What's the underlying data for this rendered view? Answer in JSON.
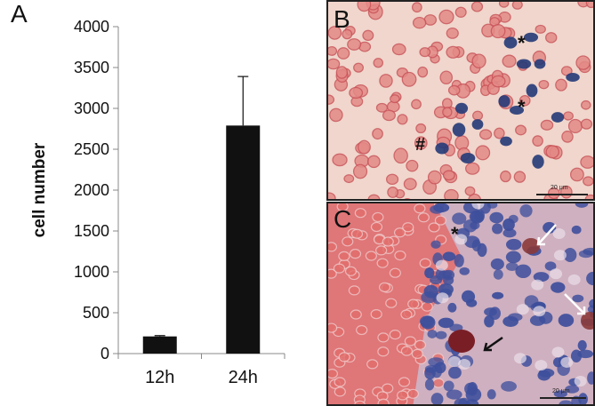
{
  "panel_a": {
    "letter": "A"
  },
  "panel_b": {
    "letter": "B",
    "marks": [
      "*",
      "*",
      "#"
    ],
    "scale_text": "20 μm"
  },
  "panel_c": {
    "letter": "C",
    "marks": [
      "*"
    ],
    "scale_text": "20 μm"
  },
  "chart_data": {
    "type": "bar",
    "categories": [
      "12h",
      "24h"
    ],
    "values": [
      210,
      2790
    ],
    "errors": [
      10,
      600
    ],
    "ylabel": "cell number",
    "xlabel": "",
    "title": "",
    "ylim": [
      0,
      4000
    ],
    "yticks": [
      0,
      500,
      1000,
      1500,
      2000,
      2500,
      3000,
      3500,
      4000
    ],
    "bar_color": "#111111",
    "axis_color": "#888888"
  }
}
